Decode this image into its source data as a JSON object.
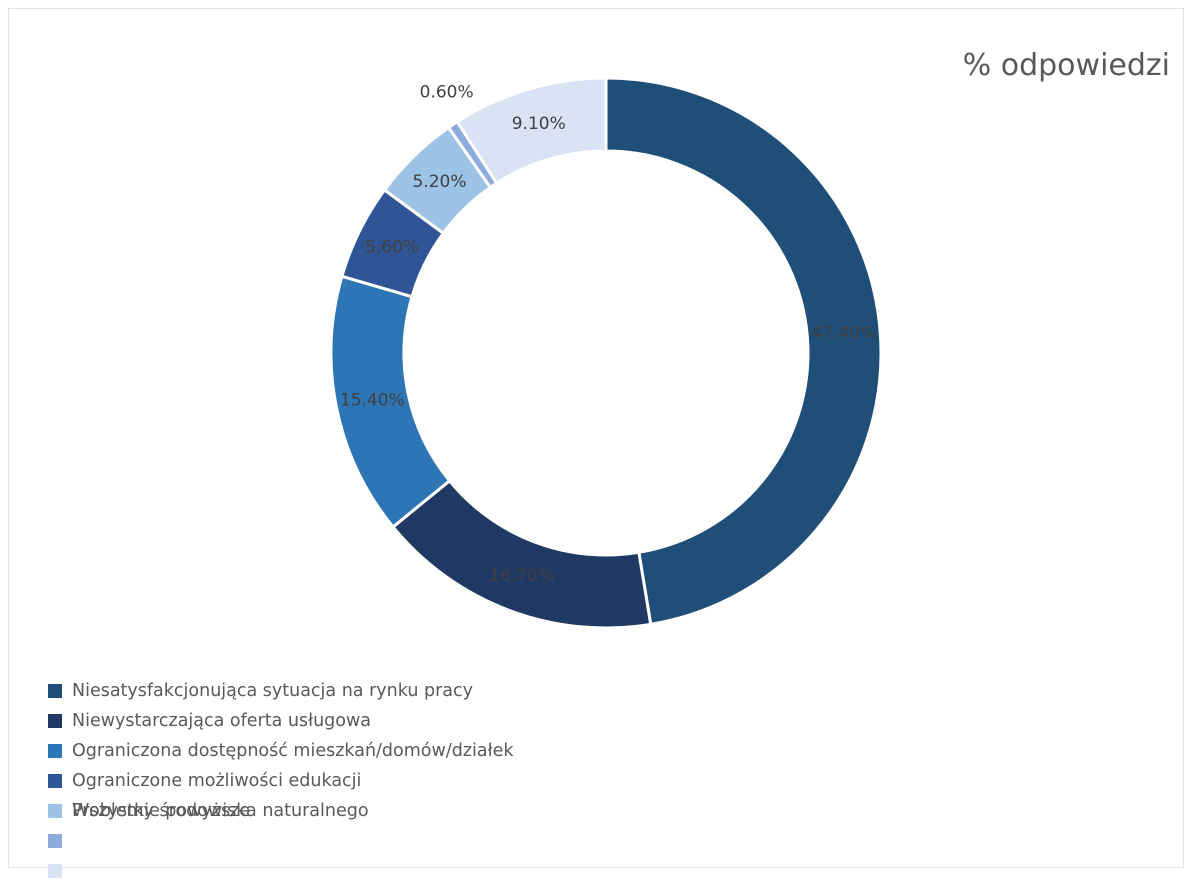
{
  "chart_data": {
    "type": "pie",
    "subtype": "doughnut",
    "title": "% odpowiedzi",
    "xlabel": "",
    "ylabel": "",
    "legend_position": "bottom-left",
    "series": [
      {
        "name": "",
        "slices": [
          {
            "label": "Niesatysfakcjonująca sytuacja na rynku pracy",
            "value": 47.4,
            "value_label": "47.40%",
            "color": "#1f4e79"
          },
          {
            "label": "Niewystarczająca oferta usługowa",
            "value": 16.7,
            "value_label": "16.70%",
            "color": "#203864"
          },
          {
            "label": "Ograniczona dostępność mieszkań/domów/działek",
            "value": 15.4,
            "value_label": "15.40%",
            "color": "#2e75b6"
          },
          {
            "label": "Ograniczone możliwości edukacji",
            "value": 5.6,
            "value_label": "5.60%",
            "color": "#2f5597"
          },
          {
            "label": "Problemy środowiska naturalnego",
            "value": 5.2,
            "value_label": "5.20%",
            "color": "#9dc3e6"
          },
          {
            "label": "",
            "value": 0.6,
            "value_label": "0.60%",
            "color": "#8faadc"
          },
          {
            "label": "",
            "value": 9.1,
            "value_label": "9.10%",
            "color": "#dae3f3"
          }
        ]
      }
    ],
    "legend_overlap_label": "Wszystkie powyższe",
    "legend_overlap_color": "#9dc3e6"
  }
}
